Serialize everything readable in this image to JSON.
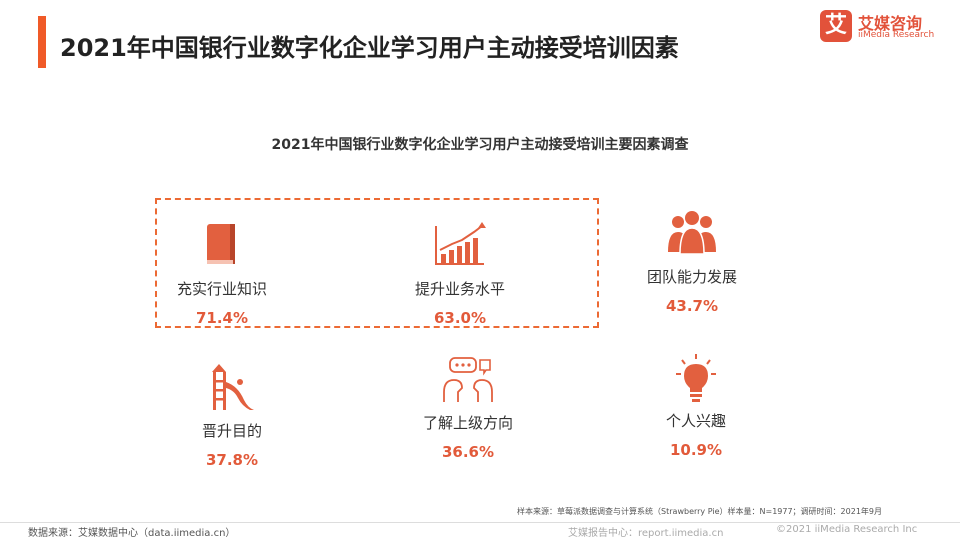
{
  "header": {
    "title": "2021年中国银行业数字化企业学习用户主动接受培训因素",
    "logo_mark": "艾",
    "logo_cn": "艾媒咨询",
    "logo_en": "iiMedia Research"
  },
  "chart_data": {
    "type": "table",
    "title": "2021年中国银行业数字化企业学习用户主动接受培训主要因素调查",
    "categories": [
      "充实行业知识",
      "提升业务水平",
      "团队能力发展",
      "晋升目的",
      "了解上级方向",
      "个人兴趣"
    ],
    "display_values": [
      "71.4%",
      "63.0%",
      "43.7%",
      "37.8%",
      "36.6%",
      "10.9%"
    ],
    "values": [
      71.4,
      63.0,
      43.7,
      37.8,
      36.6,
      10.9
    ],
    "unit": "%",
    "highlighted": [
      "充实行业知识",
      "提升业务水平"
    ],
    "icons": [
      "book-icon",
      "growth-chart-icon",
      "team-icon",
      "ladder-slide-icon",
      "chat-heads-icon",
      "lightbulb-icon"
    ],
    "accent_color": "#e25a3a"
  },
  "notes": {
    "sample": "样本来源：草莓派数据调查与计算系统（Strawberry Pie）样本量：N=1977；调研时间：2021年9月"
  },
  "footer": {
    "source": "数据来源：艾媒数据中心（data.iimedia.cn）",
    "report_center": "艾媒报告中心：report.iimedia.cn",
    "copyright": "©2021  iiMedia Research  Inc"
  }
}
